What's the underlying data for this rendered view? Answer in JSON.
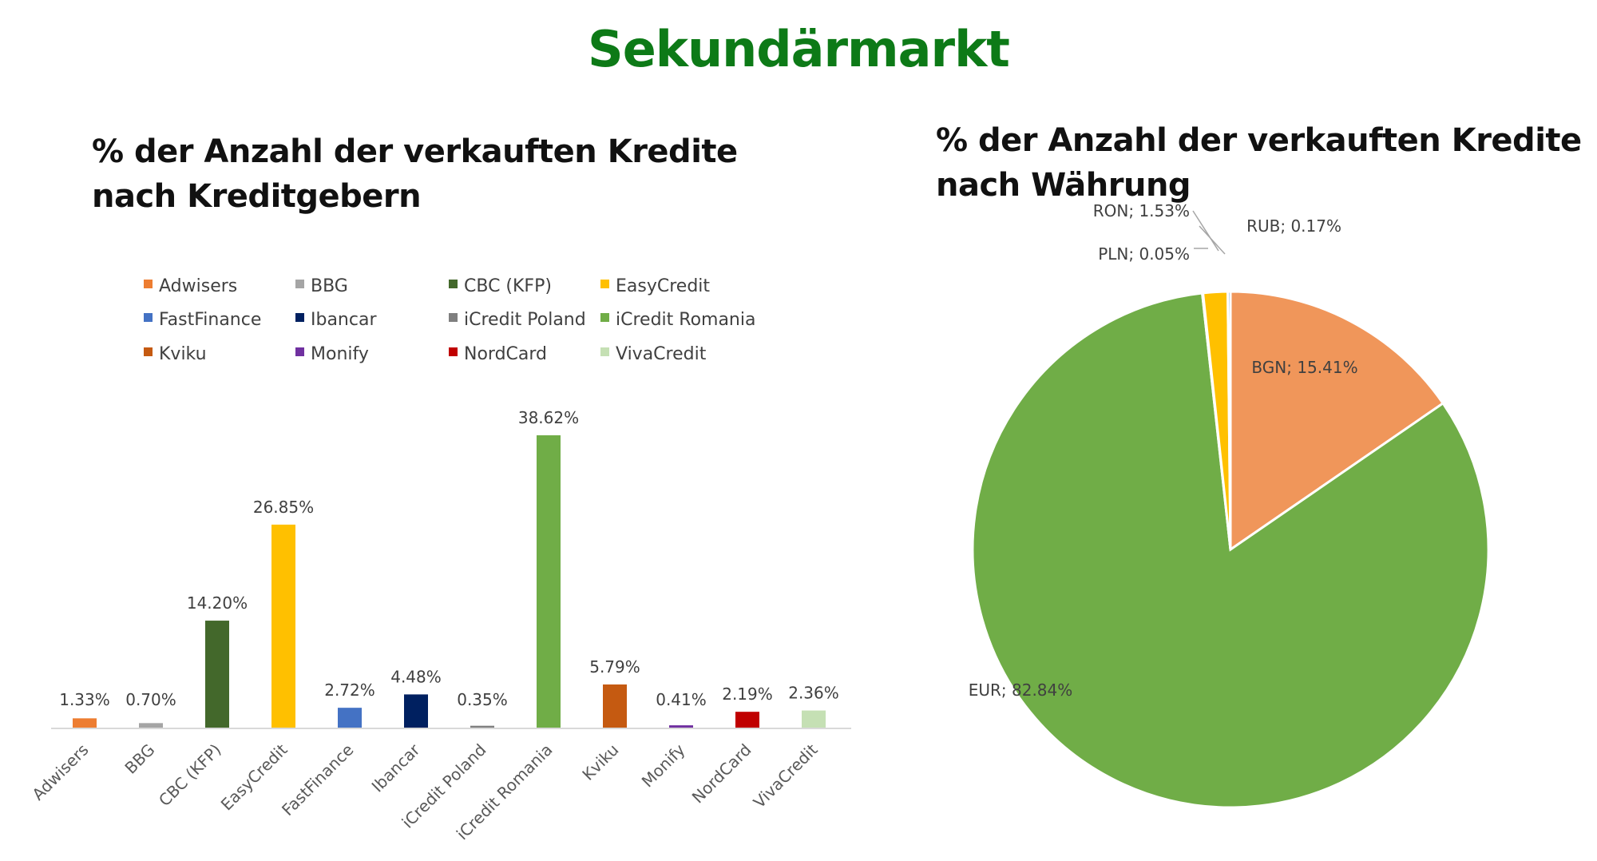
{
  "page": {
    "title": "Sekundärmarkt"
  },
  "chart_data": [
    {
      "type": "bar",
      "title_lines": [
        "% der Anzahl der verkauften Kredite",
        "nach Kreditgebern"
      ],
      "categories": [
        "Adwisers",
        "BBG",
        "CBC (KFP)",
        "EasyCredit",
        "FastFinance",
        "Ibancar",
        "iCredit Poland",
        "iCredit Romania",
        "Kviku",
        "Monify",
        "NordCard",
        "VivaCredit"
      ],
      "values": [
        1.33,
        0.7,
        14.2,
        26.85,
        2.72,
        4.48,
        0.35,
        38.62,
        5.79,
        0.41,
        2.19,
        2.36
      ],
      "data_labels": [
        "1.33%",
        "0.70%",
        "14.20%",
        "26.85%",
        "2.72%",
        "4.48%",
        "0.35%",
        "38.62%",
        "5.79%",
        "0.41%",
        "2.19%",
        "2.36%"
      ],
      "colors": [
        "#ed7d31",
        "#a5a5a5",
        "#43682b",
        "#ffc000",
        "#4472c4",
        "#002060",
        "#7f7f7f",
        "#70ad47",
        "#c55a11",
        "#7030a0",
        "#c00000",
        "#c5e0b4"
      ],
      "legend_placement": "top",
      "ylim": [
        0,
        40
      ],
      "grid": false
    },
    {
      "type": "pie",
      "title_lines": [
        "% der Anzahl der verkauften Kredite",
        "nach Währung"
      ],
      "slices": [
        {
          "label": "BGN",
          "value": 15.41,
          "display": "BGN; 15.41%",
          "color": "#f0965a"
        },
        {
          "label": "EUR",
          "value": 82.84,
          "display": "EUR; 82.84%",
          "color": "#70ad47"
        },
        {
          "label": "PLN",
          "value": 0.05,
          "display": "PLN; 0.05%",
          "color": "#4472c4"
        },
        {
          "label": "RON",
          "value": 1.53,
          "display": "RON; 1.53%",
          "color": "#ffc000"
        },
        {
          "label": "RUB",
          "value": 0.17,
          "display": "RUB; 0.17%",
          "color": "#5b9bd5"
        }
      ]
    }
  ]
}
